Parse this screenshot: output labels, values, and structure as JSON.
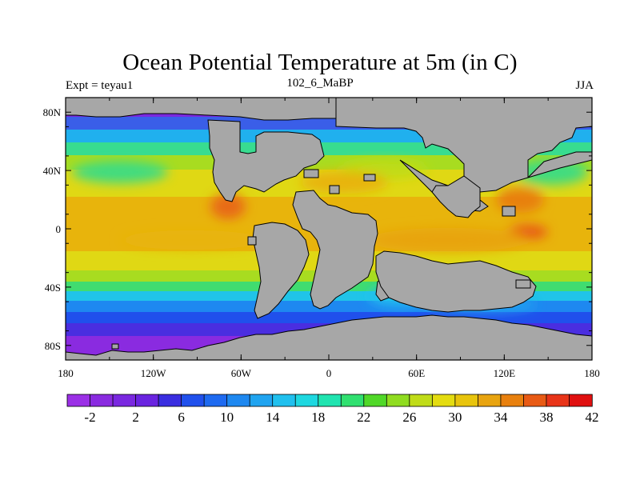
{
  "header": {
    "title": "Ocean Potential Temperature at 5m (in C)",
    "left": "Expt = teyau1",
    "center": "102_6_MaBP",
    "right": "JJA"
  },
  "axes": {
    "x_ticks": [
      {
        "value": -180,
        "label": "180"
      },
      {
        "value": -120,
        "label": "120W"
      },
      {
        "value": -60,
        "label": "60W"
      },
      {
        "value": 0,
        "label": "0"
      },
      {
        "value": 60,
        "label": "60E"
      },
      {
        "value": 120,
        "label": "120E"
      },
      {
        "value": 180,
        "label": "180"
      }
    ],
    "y_ticks": [
      {
        "value": 80,
        "label": "80N"
      },
      {
        "value": 40,
        "label": "40N"
      },
      {
        "value": 0,
        "label": "0"
      },
      {
        "value": -40,
        "label": "40S"
      },
      {
        "value": -80,
        "label": "80S"
      }
    ],
    "lon_range": [
      -180,
      180
    ],
    "lat_range": [
      -90,
      90
    ]
  },
  "colorbar": {
    "colors": [
      "#9b30e6",
      "#8a2be0",
      "#7a28e0",
      "#6a24e0",
      "#3a2ee0",
      "#2050ec",
      "#1e6af0",
      "#1e88f0",
      "#20a4f0",
      "#20c0ee",
      "#1ed8e0",
      "#20e4b0",
      "#30e070",
      "#50d828",
      "#90dc20",
      "#c0dc18",
      "#e4dc10",
      "#e8c40c",
      "#e8a410",
      "#e8800e",
      "#e85a14",
      "#e83418",
      "#e01010"
    ],
    "tick_labels": [
      "-2",
      "2",
      "6",
      "10",
      "14",
      "18",
      "22",
      "26",
      "30",
      "34",
      "38",
      "42"
    ]
  },
  "colors": {
    "land": "#a7a7a7",
    "frame": "#000000"
  }
}
